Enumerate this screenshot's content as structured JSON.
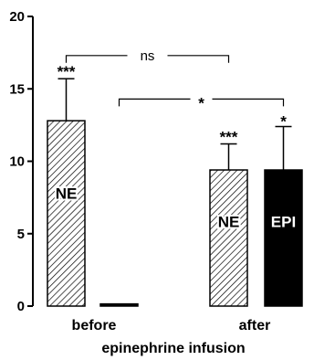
{
  "chart_data": {
    "type": "bar",
    "xlabel": "epinephrine infusion",
    "ylabel": "",
    "ylim": [
      0,
      20
    ],
    "yticks": [
      0,
      5,
      10,
      15,
      20
    ],
    "groups": [
      "before",
      "after"
    ],
    "bars": [
      {
        "group": "before",
        "label": "NE",
        "value": 12.8,
        "error": 2.9,
        "sig": "***",
        "fill": "hatched"
      },
      {
        "group": "before",
        "label": "",
        "value": 0.15,
        "error": 0,
        "sig": "",
        "fill": "solid"
      },
      {
        "group": "after",
        "label": "NE",
        "value": 9.4,
        "error": 1.8,
        "sig": "***",
        "fill": "hatched"
      },
      {
        "group": "after",
        "label": "EPI",
        "value": 9.4,
        "error": 3.0,
        "sig": "*",
        "fill": "solid"
      }
    ],
    "comparisons": [
      {
        "from": 0,
        "to": 2,
        "label": "ns",
        "y": 17.3
      },
      {
        "from": 1,
        "to": 3,
        "label": "*",
        "y": 14.3
      }
    ],
    "colors": {
      "hatched": "#000000",
      "solid": "#000000",
      "background": "#ffffff"
    }
  }
}
